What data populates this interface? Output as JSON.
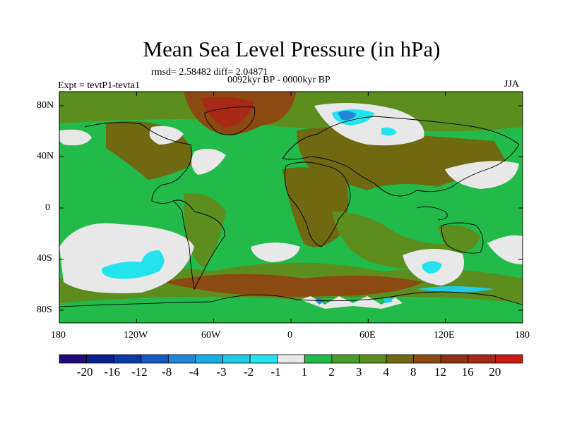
{
  "title": "Mean Sea Level Pressure (in hPa)",
  "stats_text": "rmsd= 2.58482  diff= 2.04871",
  "period": "0092kyr BP - 0000kyr BP",
  "experiment": "Expt = tevtP1-tevta1",
  "season": "JJA",
  "lat_labels": [
    "80N",
    "40N",
    "0",
    "40S",
    "80S"
  ],
  "lon_labels": [
    "180",
    "120W",
    "60W",
    "0",
    "60E",
    "120E",
    "180"
  ],
  "colorbar": {
    "labels": [
      "-20",
      "-16",
      "-12",
      "-8",
      "-4",
      "-3",
      "-2",
      "-1",
      "1",
      "2",
      "3",
      "4",
      "8",
      "12",
      "16",
      "20"
    ],
    "colors": [
      "#210a7a",
      "#0b1d8f",
      "#0c3aa8",
      "#1459c4",
      "#1f86d8",
      "#16aee4",
      "#1fcde8",
      "#23e4ee",
      "#e8e8e8",
      "#22bb4a",
      "#4a9d2a",
      "#5c8d1e",
      "#6f6a12",
      "#8a4a12",
      "#8f3214",
      "#a82816",
      "#cc1a10"
    ]
  },
  "map_colors": {
    "ocean_base": "#22bb4a",
    "land_dark": "#6f6a12",
    "olive": "#5c8d1e",
    "brown": "#8a4a12",
    "red": "#a82816",
    "gray": "#e8e8e8",
    "cyan": "#23e4ee",
    "lightblue": "#1fcde8",
    "blue": "#1f86d8"
  }
}
